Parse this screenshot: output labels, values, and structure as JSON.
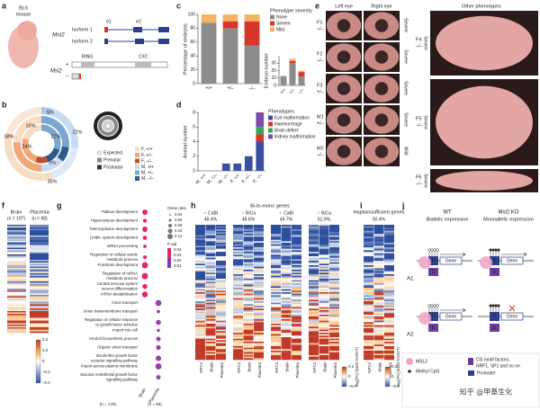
{
  "figure": {
    "a": {
      "letter": "a",
      "strain": [
        "BL6",
        "mouse"
      ],
      "gene": "Msl2",
      "isoforms": [
        "Isoform 1",
        "Isoform 2"
      ],
      "exons": [
        "e1",
        "e2"
      ],
      "domains": [
        "RING",
        "CXC"
      ],
      "protein_gene": "Msl2",
      "alleles": [
        "+",
        "–"
      ]
    },
    "b": {
      "letter": "b",
      "ring_labels": [
        "5%",
        "22%",
        "27%",
        "15%",
        "24%",
        "38%",
        "35%",
        "9%"
      ],
      "rings": [
        {
          "name": "Expected",
          "color": "#dddddd"
        },
        {
          "name": "Prenatal",
          "color": "#888888"
        },
        {
          "name": "Postnatal",
          "color": "#333333"
        }
      ],
      "groups": [
        {
          "name": "F, +/+",
          "color": "#f8dcc4"
        },
        {
          "name": "F, +/–",
          "color": "#f0a878"
        },
        {
          "name": "F, –/–",
          "color": "#c0502a"
        },
        {
          "name": "M, +/+",
          "color": "#c8dcf0"
        },
        {
          "name": "M, +/–",
          "color": "#7aa6d0"
        },
        {
          "name": "M, –/–",
          "color": "#2e5a8a"
        }
      ]
    },
    "e": {
      "letter": "e",
      "headers": [
        "Left eye",
        "Right eye",
        "Other phenotypes"
      ],
      "rows": [
        {
          "id": "F1",
          "genotype": "–/–",
          "severity": "Severe"
        },
        {
          "id": "F2",
          "genotype": "–/–",
          "severity": "Severe"
        },
        {
          "id": "F3",
          "genotype": "+/–",
          "severity": "Severe"
        },
        {
          "id": "M1",
          "genotype": "+/–",
          "severity": "Severe"
        },
        {
          "id": "M2",
          "genotype": "–/–",
          "severity": "Mild"
        }
      ],
      "others": [
        {
          "id": "F4",
          "genotype": "–/–",
          "severity": "Severe"
        },
        {
          "id": "F5",
          "genotype": "–/–",
          "severity": "Severe"
        },
        {
          "id": "F6",
          "genotype": "–/–",
          "severity": "Severe"
        }
      ]
    },
    "f": {
      "letter": "f",
      "columns": [
        "Brain",
        "Placenta"
      ],
      "counts": [
        "(n = 197)",
        "(n = 68)"
      ],
      "colorbar": [
        "0.4",
        "0.2",
        "0",
        "–0.2",
        "–0.4"
      ]
    },
    "g": {
      "letter": "g",
      "terms": [
        [
          "Pallium development"
        ],
        [
          "Hippocampus development"
        ],
        [
          "Telencephalon development"
        ],
        [
          "Limbic system development"
        ],
        [
          "mRNA processing"
        ],
        [
          "Regulation of cellular amide",
          "metabolic process"
        ],
        [
          "Forebrain development"
        ],
        [
          "Regulation of mRNA",
          "metabolic process"
        ],
        [
          "Central nervous system",
          "neuron differentiation"
        ],
        [
          "mRNA destabilization"
        ],
        [
          "Anion transport"
        ],
        [
          "Anion transmembrane transport"
        ],
        [
          "Regulation of cellular response",
          "to growth factor stimulus"
        ],
        [
          "Import into cell"
        ],
        [
          "Alcohol biosynthetic process"
        ],
        [
          "Organic anion transport"
        ],
        [
          "Insulin-like growth factor",
          "receptor signalling pathway"
        ],
        [
          "Import across plasma membrane"
        ],
        [
          "Vascular endothelial growth factor",
          "signalling pathway"
        ]
      ],
      "size_title": "Gene ratio",
      "sizes": [
        "0.04",
        "0.06",
        "0.08",
        "0.10",
        "0.12"
      ],
      "color_title": "P adj",
      "colors": [
        "0.04",
        "0.03",
        "0.02",
        "0.01"
      ],
      "columns": [
        "Brain",
        "Placenta"
      ],
      "counts": [
        "(n = 179)",
        "(n = 65)"
      ]
    },
    "h": {
      "letter": "h",
      "title": "Bi-to-mono genes",
      "groups": [
        {
          "name": "♂ CaBl",
          "percent": "48.4%"
        },
        {
          "name": "♂ BiCa",
          "percent": "48.6%"
        },
        {
          "name": "♀ CaBl",
          "percent": "49.7%"
        },
        {
          "name": "♀ BiCa",
          "percent": "51.9%"
        }
      ],
      "columns": [
        "NPCs",
        "Brain",
        "Placenta"
      ],
      "colorbar": [
        "0.3",
        "0",
        "–0.3"
      ],
      "colorbar_title": "log₂[FC] (Msl2 KO/WT)"
    },
    "i": {
      "letter": "i",
      "title": "Haploinsufficient genes",
      "percent": "50.4%",
      "columns": [
        "NPCs",
        "Brain",
        "Placenta"
      ],
      "colorbar": [
        "0.3",
        "0",
        "–0.3"
      ],
      "colorbar_title": "log₂[FC] (Msl2 KO/WT)"
    },
    "j": {
      "letter": "j",
      "wt": [
        "WT",
        "Biallelic expression"
      ],
      "ko": [
        "Msl2 KO",
        "Monoallelic expression"
      ],
      "alleles": [
        "A1",
        "A2"
      ],
      "labels": {
        "gene": "Gene",
        "promoter": "P",
        "enhancer": "E"
      },
      "legend": {
        "msl2": "MSL2",
        "cpg": "Methyl CpG",
        "factors": [
          "CG motif factors:",
          "NRF1, SP1 and so on"
        ],
        "promoter": "Promoter"
      }
    },
    "watermark": "知乎 @甲基生化"
  },
  "chart_data": [
    {
      "type": "bar",
      "letter": "c",
      "stacked": true,
      "ylabel": "Percentage of embryos",
      "legend_title": "Phenotype severity",
      "categories": [
        "+/+",
        "+/–",
        "–/–"
      ],
      "ylim": [
        0,
        100
      ],
      "yticks": [
        0,
        20,
        40,
        60,
        80,
        100
      ],
      "series": [
        {
          "name": "None",
          "color": "#8c8c8c",
          "values": [
            88,
            80,
            55
          ]
        },
        {
          "name": "Severe",
          "color": "#d9362b",
          "values": [
            0,
            10,
            35
          ]
        },
        {
          "name": "Mild",
          "color": "#f5b462",
          "values": [
            12,
            10,
            10
          ]
        }
      ]
    },
    {
      "type": "bar",
      "stacked": true,
      "ylabel": "Embryo number",
      "categories": [
        "+/+",
        "+/–",
        "–/–"
      ],
      "ylim": [
        0,
        40
      ],
      "yticks": [
        0,
        10,
        20,
        30
      ],
      "series": [
        {
          "color": "#8c8c8c",
          "values": [
            12,
            30,
            12
          ]
        },
        {
          "color": "#d9362b",
          "values": [
            0,
            3,
            6
          ]
        },
        {
          "color": "#f5b462",
          "values": [
            1,
            3,
            2
          ]
        }
      ]
    },
    {
      "type": "bar",
      "letter": "d",
      "stacked": true,
      "ylabel": "Animal number",
      "legend_title": "Phenotypes",
      "categories": [
        "M, +/+",
        "M, +/–",
        "M, –/–",
        "F, +/+",
        "F, +/–",
        "F, –/–"
      ],
      "ylim": [
        0,
        8
      ],
      "yticks": [
        0,
        2,
        4,
        6,
        8
      ],
      "series": [
        {
          "name": "Eye malformation",
          "color": "#3b4fa0",
          "values": [
            0,
            0,
            1,
            1,
            2,
            4
          ]
        },
        {
          "name": "Haemorrhage",
          "color": "#d9362b",
          "values": [
            0,
            0,
            0,
            0,
            0,
            1
          ]
        },
        {
          "name": "Brain defect",
          "color": "#3aa655",
          "values": [
            0,
            0,
            0,
            0,
            0,
            1
          ]
        },
        {
          "name": "Kidney malformation",
          "color": "#7b4fa8",
          "values": [
            0,
            0,
            0,
            0,
            0,
            2
          ]
        }
      ]
    }
  ]
}
